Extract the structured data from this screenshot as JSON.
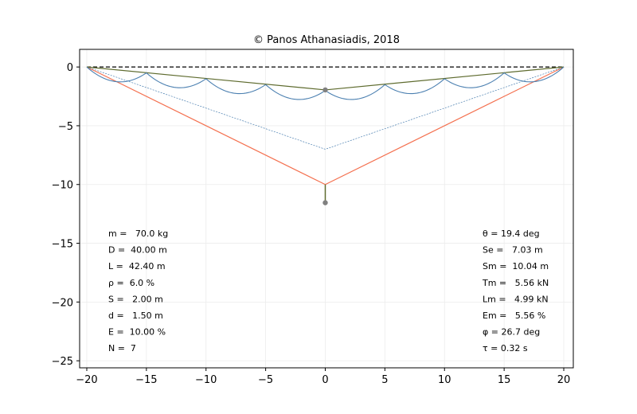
{
  "chart_data": {
    "type": "line",
    "title": "© Panos Athanasiadis, 2018",
    "xlabel": "",
    "ylabel": "",
    "xlim": [
      -20.6,
      20.8
    ],
    "ylim": [
      -25.6,
      1.5
    ],
    "grid": true,
    "xticks": [
      -20,
      -15,
      -10,
      -5,
      0,
      5,
      10,
      15,
      20
    ],
    "xtick_labels": [
      "−20",
      "−15",
      "−10",
      "−5",
      "0",
      "5",
      "10",
      "15",
      "20"
    ],
    "yticks": [
      0,
      -5,
      -10,
      -15,
      -20,
      -25
    ],
    "ytick_labels": [
      "0",
      "−5",
      "−10",
      "−15",
      "−20",
      "−25"
    ],
    "colors": {
      "reference": "#000000",
      "outer_line": "#f4704f",
      "inner_line": "#4a7fb0",
      "arcs": "#4a7fb0",
      "top_line": "#5e6b2e",
      "marker": "#808080"
    },
    "series": [
      {
        "key": "reference",
        "style": "dashed",
        "x": [
          -20,
          20
        ],
        "y": [
          0,
          0
        ]
      },
      {
        "key": "outer_line",
        "style": "solid",
        "x": [
          -20,
          0,
          20
        ],
        "y": [
          0,
          -10,
          0
        ]
      },
      {
        "key": "inner_line",
        "style": "dotted",
        "x": [
          -20,
          0,
          20
        ],
        "y": [
          0,
          -7,
          0
        ]
      },
      {
        "key": "top_line",
        "style": "solid",
        "x": [
          -20,
          0,
          20
        ],
        "y": [
          0,
          -1.95,
          0
        ]
      },
      {
        "key": "pendant",
        "style": "solid",
        "x": [
          0,
          0
        ],
        "y": [
          -10,
          -11.55
        ]
      }
    ],
    "arc_nodes": {
      "x": [
        -20,
        -15,
        -10,
        -5,
        0,
        5,
        10,
        15,
        20
      ],
      "y": [
        0,
        -0.5,
        -1,
        -1.5,
        -2,
        -1.5,
        -1,
        -0.5,
        0
      ]
    },
    "arc_sag": 1.0,
    "markers": [
      {
        "x": 0,
        "y": -1.95
      },
      {
        "x": 0,
        "y": -11.55
      }
    ],
    "annotations_left": [
      "m =   70.0 kg",
      "D =  40.00 m",
      "L =  42.40 m",
      "ρ =  6.0 %",
      "S =   2.00 m",
      "d =   1.50 m",
      "E =  10.00 %",
      "N =  7"
    ],
    "annotations_right": [
      "θ = 19.4 deg",
      "Se =   7.03 m",
      "Sm =  10.04 m",
      "Tm =   5.56 kN",
      "Lm =   4.99 kN",
      "Em =   5.56 %",
      "φ = 26.7 deg",
      "τ = 0.32 s"
    ]
  }
}
